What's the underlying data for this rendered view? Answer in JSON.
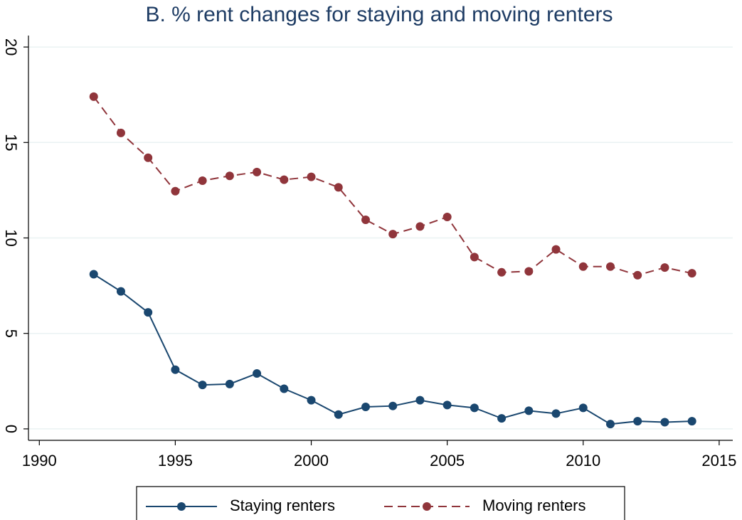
{
  "chart_data": {
    "type": "line",
    "title": "B. % rent changes for staying and moving renters",
    "x": [
      1992,
      1993,
      1994,
      1995,
      1996,
      1997,
      1998,
      1999,
      2000,
      2001,
      2002,
      2003,
      2004,
      2005,
      2006,
      2007,
      2008,
      2009,
      2010,
      2011,
      2012,
      2013,
      2014
    ],
    "series": [
      {
        "name": "Staying renters",
        "color": "#1a476f",
        "dash": false,
        "values": [
          8.1,
          7.2,
          6.1,
          3.1,
          2.3,
          2.35,
          2.9,
          2.1,
          1.5,
          0.75,
          1.15,
          1.2,
          1.5,
          1.25,
          1.1,
          0.55,
          0.95,
          0.8,
          1.1,
          0.25,
          0.4,
          0.35,
          0.4
        ]
      },
      {
        "name": "Moving renters",
        "color": "#90353b",
        "dash": true,
        "values": [
          17.4,
          15.5,
          14.2,
          12.45,
          13.0,
          13.25,
          13.45,
          13.05,
          13.2,
          12.65,
          10.95,
          10.2,
          10.6,
          11.1,
          9.0,
          8.2,
          8.25,
          9.4,
          8.5,
          8.5,
          8.05,
          8.45,
          8.15
        ]
      }
    ],
    "xlim": [
      1989.6,
      2015.5
    ],
    "xticks": [
      1990,
      1995,
      2000,
      2005,
      2010,
      2015
    ],
    "ylim": [
      -0.6,
      20.6
    ],
    "yticks": [
      0,
      5,
      10,
      15,
      20
    ],
    "grid": true
  }
}
